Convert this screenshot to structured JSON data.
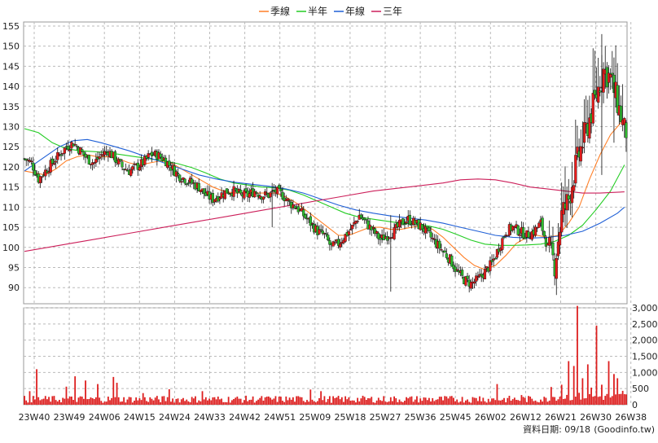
{
  "chart_data": [
    {
      "type": "candlestick",
      "legend": [
        {
          "name": "季線",
          "color": "#ff7f27"
        },
        {
          "name": "半年",
          "color": "#22cc22"
        },
        {
          "name": "年線",
          "color": "#1f5fd6"
        },
        {
          "name": "三年",
          "color": "#cc1f5a"
        }
      ],
      "x_tick_labels": [
        "23W40",
        "23W49",
        "24W06",
        "24W15",
        "24W24",
        "24W33",
        "24W42",
        "24W51",
        "25W09",
        "25W18",
        "25W27",
        "25W36",
        "25W45",
        "26W02",
        "26W12",
        "26W21",
        "26W30",
        "26W38"
      ],
      "ylim": [
        86,
        156
      ],
      "y_ticks": [
        90,
        95,
        100,
        105,
        110,
        115,
        120,
        125,
        130,
        135,
        140,
        145,
        150,
        155
      ],
      "grid": true,
      "candle_colors": {
        "up": "#e81b1b",
        "down": "#2dbb2d"
      },
      "price_path": [
        [
          0,
          122
        ],
        [
          4,
          121
        ],
        [
          8,
          117
        ],
        [
          12,
          119
        ],
        [
          16,
          121
        ],
        [
          20,
          123
        ],
        [
          24,
          125
        ],
        [
          28,
          126
        ],
        [
          32,
          124
        ],
        [
          36,
          122
        ],
        [
          40,
          121
        ],
        [
          44,
          123
        ],
        [
          48,
          124
        ],
        [
          52,
          122
        ],
        [
          56,
          120
        ],
        [
          60,
          119
        ],
        [
          64,
          120
        ],
        [
          68,
          121
        ],
        [
          72,
          123
        ],
        [
          76,
          123
        ],
        [
          80,
          122
        ],
        [
          84,
          120
        ],
        [
          88,
          118
        ],
        [
          92,
          117
        ],
        [
          96,
          116
        ],
        [
          100,
          115
        ],
        [
          104,
          113
        ],
        [
          108,
          112
        ],
        [
          112,
          113
        ],
        [
          116,
          114
        ],
        [
          120,
          114
        ],
        [
          124,
          113
        ],
        [
          128,
          113
        ],
        [
          132,
          114
        ],
        [
          136,
          113
        ],
        [
          140,
          113
        ],
        [
          144,
          114
        ],
        [
          148,
          113
        ],
        [
          152,
          111
        ],
        [
          156,
          110
        ],
        [
          160,
          108
        ],
        [
          164,
          106
        ],
        [
          168,
          104
        ],
        [
          172,
          103
        ],
        [
          176,
          100
        ],
        [
          180,
          101
        ],
        [
          184,
          103
        ],
        [
          188,
          105
        ],
        [
          192,
          108
        ],
        [
          196,
          106
        ],
        [
          200,
          104
        ],
        [
          204,
          102
        ],
        [
          208,
          103
        ],
        [
          212,
          104
        ],
        [
          216,
          106
        ],
        [
          220,
          107
        ],
        [
          224,
          106
        ],
        [
          228,
          105
        ],
        [
          232,
          103
        ],
        [
          236,
          101
        ],
        [
          240,
          99
        ],
        [
          244,
          97
        ],
        [
          248,
          94
        ],
        [
          252,
          92
        ],
        [
          256,
          91
        ],
        [
          260,
          92
        ],
        [
          264,
          94
        ],
        [
          268,
          96
        ],
        [
          272,
          100
        ],
        [
          276,
          104
        ],
        [
          280,
          105
        ],
        [
          284,
          104
        ],
        [
          288,
          103
        ],
        [
          292,
          104
        ],
        [
          296,
          106
        ],
        [
          300,
          100
        ],
        [
          304,
          96
        ],
        [
          308,
          108
        ],
        [
          312,
          112
        ],
        [
          316,
          120
        ],
        [
          320,
          126
        ],
        [
          324,
          132
        ],
        [
          328,
          138
        ],
        [
          332,
          144
        ],
        [
          336,
          142
        ],
        [
          340,
          136
        ],
        [
          344,
          129
        ]
      ],
      "ma_lines": [
        {
          "name": "季線",
          "color": "#ff7f27",
          "points": [
            [
              0,
              119
            ],
            [
              6,
              118.5
            ],
            [
              12,
              118
            ],
            [
              18,
              119.5
            ],
            [
              24,
              121.5
            ],
            [
              30,
              122.5
            ],
            [
              36,
              123
            ],
            [
              42,
              122.5
            ],
            [
              48,
              122.5
            ],
            [
              54,
              122
            ],
            [
              60,
              121
            ],
            [
              66,
              120.5
            ],
            [
              72,
              121
            ],
            [
              78,
              121.5
            ],
            [
              84,
              121
            ],
            [
              90,
              119.5
            ],
            [
              96,
              118
            ],
            [
              102,
              116.5
            ],
            [
              108,
              115
            ],
            [
              114,
              114
            ],
            [
              120,
              113.5
            ],
            [
              126,
              113.5
            ],
            [
              132,
              113.5
            ],
            [
              138,
              113.5
            ],
            [
              144,
              113.5
            ],
            [
              150,
              112.5
            ],
            [
              156,
              111
            ],
            [
              162,
              109
            ],
            [
              168,
              107
            ],
            [
              174,
              105
            ],
            [
              180,
              103
            ],
            [
              186,
              103
            ],
            [
              192,
              104
            ],
            [
              198,
              105
            ],
            [
              204,
              105
            ],
            [
              210,
              104.5
            ],
            [
              216,
              104.5
            ],
            [
              222,
              105
            ],
            [
              228,
              105.5
            ],
            [
              234,
              104.5
            ],
            [
              240,
              102.5
            ],
            [
              246,
              100
            ],
            [
              252,
              97.5
            ],
            [
              258,
              95.5
            ],
            [
              264,
              94.5
            ],
            [
              270,
              95.5
            ],
            [
              276,
              98
            ],
            [
              282,
              101
            ],
            [
              288,
              102.5
            ],
            [
              294,
              103
            ],
            [
              300,
              102.5
            ],
            [
              306,
              103
            ],
            [
              312,
              106
            ],
            [
              318,
              110
            ],
            [
              324,
              117
            ],
            [
              330,
              123
            ],
            [
              336,
              128
            ],
            [
              342,
              131
            ]
          ]
        },
        {
          "name": "半年",
          "color": "#22cc22",
          "points": [
            [
              0,
              129.5
            ],
            [
              8,
              128.5
            ],
            [
              16,
              126
            ],
            [
              24,
              124.5
            ],
            [
              32,
              124
            ],
            [
              40,
              123.8
            ],
            [
              48,
              123.5
            ],
            [
              56,
              123
            ],
            [
              64,
              122.5
            ],
            [
              72,
              122
            ],
            [
              80,
              121.5
            ],
            [
              88,
              120.8
            ],
            [
              96,
              119.8
            ],
            [
              104,
              118.5
            ],
            [
              112,
              117
            ],
            [
              120,
              116
            ],
            [
              128,
              115.5
            ],
            [
              136,
              115
            ],
            [
              144,
              114.8
            ],
            [
              152,
              114.2
            ],
            [
              160,
              113
            ],
            [
              168,
              111.5
            ],
            [
              176,
              110
            ],
            [
              184,
              108.5
            ],
            [
              192,
              107.5
            ],
            [
              200,
              107
            ],
            [
              208,
              106.5
            ],
            [
              216,
              106
            ],
            [
              224,
              105.8
            ],
            [
              232,
              105.3
            ],
            [
              240,
              104.5
            ],
            [
              248,
              103.2
            ],
            [
              256,
              101.8
            ],
            [
              264,
              100.8
            ],
            [
              272,
              100.5
            ],
            [
              280,
              100.5
            ],
            [
              288,
              100.6
            ],
            [
              296,
              100.8
            ],
            [
              304,
              101.5
            ],
            [
              312,
              103
            ],
            [
              320,
              105.5
            ],
            [
              328,
              109.5
            ],
            [
              336,
              114
            ],
            [
              344,
              120.5
            ]
          ]
        },
        {
          "name": "年線",
          "color": "#1f5fd6",
          "points": [
            [
              0,
              119
            ],
            [
              10,
              122
            ],
            [
              20,
              125
            ],
            [
              28,
              126.5
            ],
            [
              36,
              126.8
            ],
            [
              44,
              126
            ],
            [
              52,
              125
            ],
            [
              60,
              124
            ],
            [
              70,
              122.5
            ],
            [
              80,
              121
            ],
            [
              90,
              119.5
            ],
            [
              100,
              118
            ],
            [
              110,
              117
            ],
            [
              120,
              116.2
            ],
            [
              130,
              115.7
            ],
            [
              140,
              115.2
            ],
            [
              150,
              114.5
            ],
            [
              160,
              113.5
            ],
            [
              170,
              112
            ],
            [
              180,
              110.5
            ],
            [
              190,
              109.3
            ],
            [
              200,
              108.5
            ],
            [
              210,
              107.8
            ],
            [
              220,
              107.3
            ],
            [
              230,
              106.8
            ],
            [
              240,
              106
            ],
            [
              250,
              105
            ],
            [
              260,
              104
            ],
            [
              270,
              103
            ],
            [
              280,
              102.5
            ],
            [
              290,
              102.3
            ],
            [
              300,
              102.5
            ],
            [
              310,
              103
            ],
            [
              320,
              104
            ],
            [
              330,
              106
            ],
            [
              340,
              108.5
            ],
            [
              344,
              110
            ]
          ]
        },
        {
          "name": "三年",
          "color": "#cc1f5a",
          "points": [
            [
              0,
              99
            ],
            [
              20,
              100.5
            ],
            [
              40,
              102
            ],
            [
              60,
              103.5
            ],
            [
              80,
              105
            ],
            [
              100,
              106.5
            ],
            [
              120,
              108
            ],
            [
              140,
              109.5
            ],
            [
              160,
              111
            ],
            [
              180,
              112.5
            ],
            [
              200,
              114
            ],
            [
              220,
              115
            ],
            [
              240,
              116
            ],
            [
              250,
              116.8
            ],
            [
              260,
              117
            ],
            [
              270,
              116.8
            ],
            [
              280,
              116
            ],
            [
              290,
              115
            ],
            [
              300,
              114.5
            ],
            [
              310,
              114
            ],
            [
              320,
              113.5
            ],
            [
              330,
              113.5
            ],
            [
              344,
              113.8
            ]
          ]
        }
      ]
    },
    {
      "type": "bar",
      "name": "volume",
      "ylim": [
        0,
        3000
      ],
      "y_tick_labels": [
        "0",
        "500",
        "1,000",
        "1,500",
        "2,000",
        "2,500",
        "3,000"
      ],
      "bar_color": "#dd1f1f",
      "peaks": [
        {
          "i": 3,
          "v": 420
        },
        {
          "i": 7,
          "v": 1100
        },
        {
          "i": 24,
          "v": 560
        },
        {
          "i": 29,
          "v": 880
        },
        {
          "i": 35,
          "v": 750
        },
        {
          "i": 42,
          "v": 640
        },
        {
          "i": 51,
          "v": 860
        },
        {
          "i": 53,
          "v": 680
        },
        {
          "i": 68,
          "v": 360
        },
        {
          "i": 83,
          "v": 480
        },
        {
          "i": 102,
          "v": 420
        },
        {
          "i": 164,
          "v": 470
        },
        {
          "i": 170,
          "v": 420
        },
        {
          "i": 261,
          "v": 260
        },
        {
          "i": 271,
          "v": 640
        },
        {
          "i": 285,
          "v": 300
        },
        {
          "i": 302,
          "v": 550
        },
        {
          "i": 308,
          "v": 620
        },
        {
          "i": 312,
          "v": 1350
        },
        {
          "i": 315,
          "v": 1200
        },
        {
          "i": 317,
          "v": 3100
        },
        {
          "i": 320,
          "v": 820
        },
        {
          "i": 323,
          "v": 1250
        },
        {
          "i": 325,
          "v": 530
        },
        {
          "i": 328,
          "v": 2450
        },
        {
          "i": 331,
          "v": 620
        },
        {
          "i": 335,
          "v": 1350
        },
        {
          "i": 338,
          "v": 950
        },
        {
          "i": 340,
          "v": 820
        },
        {
          "i": 343,
          "v": 430
        }
      ]
    }
  ],
  "footer": {
    "date_text": "資料日期: 09/18",
    "source_text": "(Goodinfo.tw)"
  }
}
